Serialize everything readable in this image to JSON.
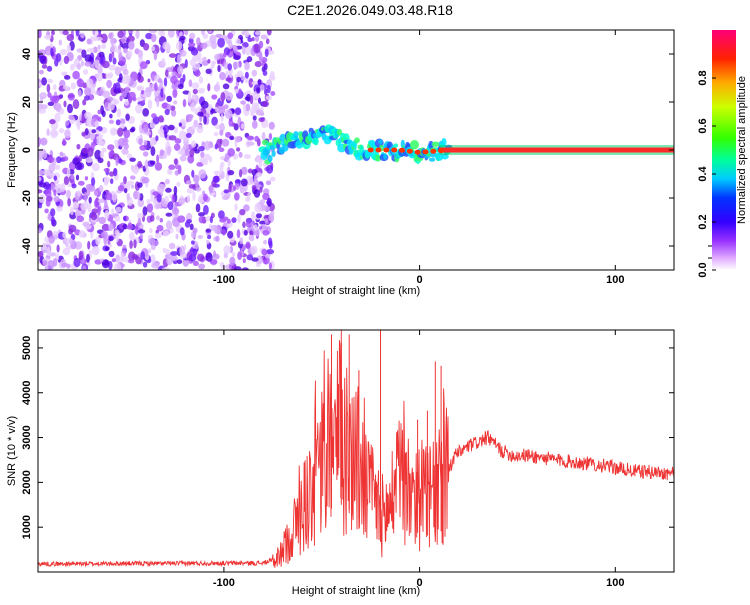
{
  "title": "C2E1.2026.049.03.48.R18",
  "charts": {
    "spectrogram": {
      "type": "heatmap",
      "xlabel": "Height of straight line (km)",
      "ylabel": "Frequency (Hz)",
      "xlim": [
        -195,
        130
      ],
      "ylim": [
        -50,
        50
      ],
      "xticks": [
        -100,
        0,
        100
      ],
      "yticks": [
        -40,
        -20,
        0,
        20,
        40
      ],
      "noise_region_end": -78,
      "ridge": [
        {
          "x": -78,
          "y": -2
        },
        {
          "x": -70,
          "y": 3
        },
        {
          "x": -60,
          "y": 5
        },
        {
          "x": -50,
          "y": 6
        },
        {
          "x": -42,
          "y": 5
        },
        {
          "x": -35,
          "y": 1
        },
        {
          "x": -25,
          "y": 0
        },
        {
          "x": -10,
          "y": 0
        },
        {
          "x": 0,
          "y": -1
        },
        {
          "x": 15,
          "y": 0
        },
        {
          "x": 130,
          "y": 0
        }
      ]
    },
    "colorbar": {
      "label": "Normalized spectral amplitude",
      "range": [
        0,
        1
      ],
      "ticks": [
        "0.0",
        "0.2",
        "0.4",
        "0.6",
        "0.8"
      ],
      "tick_values": [
        0,
        0.2,
        0.4,
        0.6,
        0.8
      ],
      "colors": [
        "#ffffff",
        "#cc33ff",
        "#6600ff",
        "#0000ff",
        "#00ccff",
        "#00ff66",
        "#66ff00",
        "#ffff00",
        "#ff8800",
        "#ff0000",
        "#ff0066"
      ]
    },
    "snr": {
      "type": "line",
      "xlabel": "Height of straight line (km)",
      "ylabel": "SNR (10 * v/v)",
      "xlim": [
        -195,
        130
      ],
      "ylim": [
        0,
        5400
      ],
      "xticks": [
        -100,
        0,
        100
      ],
      "yticks": [
        1000,
        2000,
        3000,
        4000,
        5000
      ],
      "color": "#ee3333",
      "envelope": [
        {
          "x": -195,
          "y": 180
        },
        {
          "x": -80,
          "y": 200
        },
        {
          "x": -72,
          "y": 300
        },
        {
          "x": -65,
          "y": 900
        },
        {
          "x": -58,
          "y": 1600
        },
        {
          "x": -52,
          "y": 2200
        },
        {
          "x": -46,
          "y": 2800
        },
        {
          "x": -40,
          "y": 3000
        },
        {
          "x": -33,
          "y": 2600
        },
        {
          "x": -25,
          "y": 1700
        },
        {
          "x": -18,
          "y": 1200
        },
        {
          "x": -10,
          "y": 2000
        },
        {
          "x": -4,
          "y": 1900
        },
        {
          "x": 2,
          "y": 1600
        },
        {
          "x": 10,
          "y": 1700
        },
        {
          "x": 18,
          "y": 2600
        },
        {
          "x": 25,
          "y": 2800
        },
        {
          "x": 35,
          "y": 3000
        },
        {
          "x": 42,
          "y": 2700
        },
        {
          "x": 48,
          "y": 2600
        },
        {
          "x": 55,
          "y": 2600
        },
        {
          "x": 70,
          "y": 2500
        },
        {
          "x": 90,
          "y": 2400
        },
        {
          "x": 110,
          "y": 2250
        },
        {
          "x": 130,
          "y": 2200
        }
      ],
      "spikes": [
        {
          "x": -45,
          "y": 5300
        },
        {
          "x": -40,
          "y": 5100
        },
        {
          "x": -36,
          "y": 5300
        },
        {
          "x": -31,
          "y": 4500
        },
        {
          "x": -20,
          "y": 5400
        },
        {
          "x": 8,
          "y": 4700
        },
        {
          "x": 11,
          "y": 4600
        },
        {
          "x": -1,
          "y": 3400
        },
        {
          "x": 4,
          "y": 3600
        }
      ]
    }
  }
}
